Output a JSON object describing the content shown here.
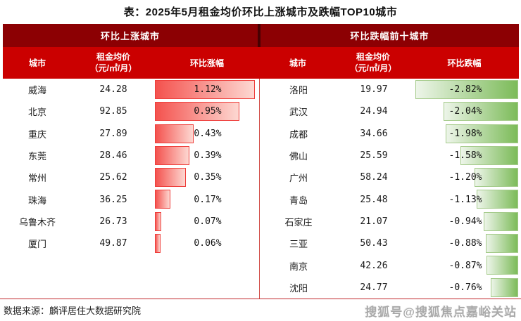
{
  "title": "表：2025年5月租金均价环比上涨城市及跌幅TOP10城市",
  "source_note": "数据来源：麟评居住大数据研究院",
  "watermark": "搜狐号@搜狐焦点嘉峪关站",
  "colors": {
    "panel_title_band": "#8C0003",
    "column_header_band": "#CB0000",
    "rise_bar_gradient_start": "#F4524E",
    "rise_bar_gradient_end": "#FDD8D2",
    "rise_bar_border": "#EE3E3B",
    "fall_bar_gradient_start": "#EDF5E9",
    "fall_bar_gradient_end": "#7CBB59",
    "fall_bar_border": "#A5CB8B",
    "panel_divider": "#D04A43",
    "bottom_rule": "#C2272B"
  },
  "panels": {
    "rise": {
      "header": "环比上涨城市",
      "columns": {
        "city": "城市",
        "price_line1": "租金均价",
        "price_line2": "（元/㎡/月）",
        "change": "环比涨幅"
      },
      "rows": [
        {
          "city": "威海",
          "price": "24.28",
          "change": "1.12%",
          "value": 1.12
        },
        {
          "city": "北京",
          "price": "92.85",
          "change": "0.95%",
          "value": 0.95
        },
        {
          "city": "重庆",
          "price": "27.89",
          "change": "0.43%",
          "value": 0.43
        },
        {
          "city": "东莞",
          "price": "28.46",
          "change": "0.39%",
          "value": 0.39
        },
        {
          "city": "常州",
          "price": "25.62",
          "change": "0.35%",
          "value": 0.35
        },
        {
          "city": "珠海",
          "price": "36.25",
          "change": "0.17%",
          "value": 0.17
        },
        {
          "city": "乌鲁木齐",
          "price": "26.73",
          "change": "0.07%",
          "value": 0.07
        },
        {
          "city": "厦门",
          "price": "49.87",
          "change": "0.06%",
          "value": 0.06
        }
      ]
    },
    "fall": {
      "header": "环比跌幅前十城市",
      "columns": {
        "city": "城市",
        "price_line1": "租金均价",
        "price_line2": "（元/㎡/月）",
        "change": "环比跌幅"
      },
      "rows": [
        {
          "city": "洛阳",
          "price": "19.97",
          "change": "-2.82%",
          "value": -2.82
        },
        {
          "city": "武汉",
          "price": "24.94",
          "change": "-2.04%",
          "value": -2.04
        },
        {
          "city": "成都",
          "price": "34.66",
          "change": "-1.98%",
          "value": -1.98
        },
        {
          "city": "佛山",
          "price": "25.59",
          "change": "-1.58%",
          "value": -1.58
        },
        {
          "city": "广州",
          "price": "58.24",
          "change": "-1.20%",
          "value": -1.2
        },
        {
          "city": "青岛",
          "price": "25.48",
          "change": "-1.13%",
          "value": -1.13
        },
        {
          "city": "石家庄",
          "price": "21.07",
          "change": "-0.94%",
          "value": -0.94
        },
        {
          "city": "三亚",
          "price": "50.43",
          "change": "-0.88%",
          "value": -0.88
        },
        {
          "city": "南京",
          "price": "42.26",
          "change": "-0.87%",
          "value": -0.87
        },
        {
          "city": "沈阳",
          "price": "24.77",
          "change": "-0.76%",
          "value": -0.76
        }
      ]
    }
  },
  "chart_data": [
    {
      "type": "bar",
      "orientation": "horizontal",
      "title": "环比上涨城市",
      "categories": [
        "威海",
        "北京",
        "重庆",
        "东莞",
        "常州",
        "珠海",
        "乌鲁木齐",
        "厦门"
      ],
      "series": [
        {
          "name": "租金均价（元/㎡/月）",
          "values": [
            24.28,
            92.85,
            27.89,
            28.46,
            25.62,
            36.25,
            26.73,
            49.87
          ]
        },
        {
          "name": "环比涨幅(%)",
          "values": [
            1.12,
            0.95,
            0.43,
            0.39,
            0.35,
            0.17,
            0.07,
            0.06
          ]
        }
      ],
      "xlim": [
        0,
        1.12
      ],
      "legend": "none",
      "grid": false
    },
    {
      "type": "bar",
      "orientation": "horizontal",
      "title": "环比跌幅前十城市",
      "categories": [
        "洛阳",
        "武汉",
        "成都",
        "佛山",
        "广州",
        "青岛",
        "石家庄",
        "三亚",
        "南京",
        "沈阳"
      ],
      "series": [
        {
          "name": "租金均价（元/㎡/月）",
          "values": [
            19.97,
            24.94,
            34.66,
            25.59,
            58.24,
            25.48,
            21.07,
            50.43,
            42.26,
            24.77
          ]
        },
        {
          "name": "环比跌幅(%)",
          "values": [
            -2.82,
            -2.04,
            -1.98,
            -1.58,
            -1.2,
            -1.13,
            -0.94,
            -0.88,
            -0.87,
            -0.76
          ]
        }
      ],
      "xlim": [
        -2.82,
        0
      ],
      "legend": "none",
      "grid": false
    }
  ]
}
